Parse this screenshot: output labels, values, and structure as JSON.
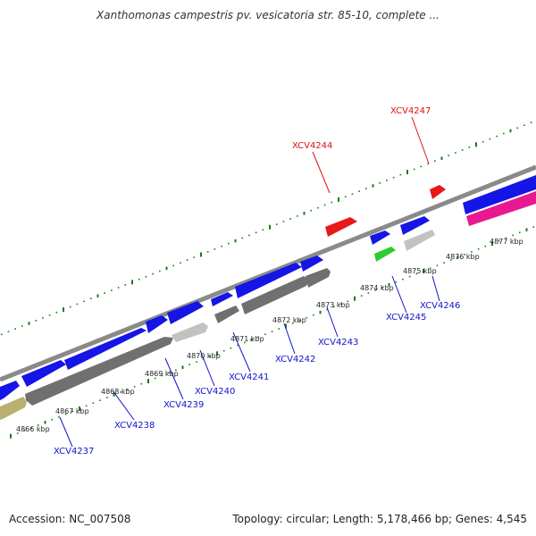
{
  "title": "Xanthomonas campestris pv. vesicatoria str. 85-10, complete ...",
  "footer": {
    "accession": "Accession: NC_007508",
    "summary": "Topology: circular; Length: 5,178,466 bp; Genes: 4,545"
  },
  "colors": {
    "forward_gene": "#1515e6",
    "reverse_gene": "#707070",
    "highlight_gene": "#e81818",
    "rna_gene": "#2ecc2e",
    "pink_feature": "#e81890",
    "khaki_feature": "#b8b070",
    "light_gene": "#c2c2c2",
    "tick": "#1a7a1a",
    "label_blue": "#1212cc",
    "label_red": "#dd1111"
  },
  "tick_labels": [
    "4866 kbp",
    "4867 kbp",
    "4868 kbp",
    "4869 kbp",
    "4870 kbp",
    "4871 kbp",
    "4872 kbp",
    "4873 kbp",
    "4874 kbp",
    "4875 kbp",
    "4876 kbp",
    "4877 kbp"
  ],
  "gene_labels": [
    {
      "text": "XCV4237",
      "color": "blue"
    },
    {
      "text": "XCV4238",
      "color": "blue"
    },
    {
      "text": "XCV4239",
      "color": "blue"
    },
    {
      "text": "XCV4240",
      "color": "blue"
    },
    {
      "text": "XCV4241",
      "color": "blue"
    },
    {
      "text": "XCV4242",
      "color": "blue"
    },
    {
      "text": "XCV4243",
      "color": "blue"
    },
    {
      "text": "XCV4244",
      "color": "red"
    },
    {
      "text": "XCV4245",
      "color": "blue"
    },
    {
      "text": "XCV4246",
      "color": "blue"
    },
    {
      "text": "XCV4247",
      "color": "red"
    }
  ]
}
